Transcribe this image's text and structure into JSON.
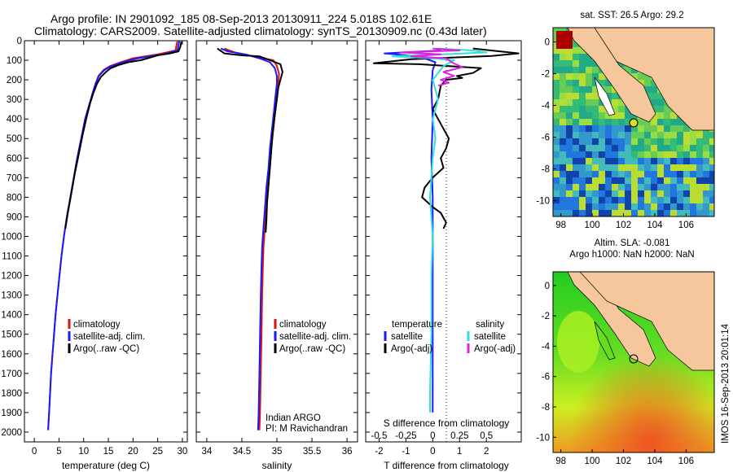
{
  "header": {
    "line1": "Argo profile: IN 2901092_185 08-Sep-2013 20130911_224 5.018S 102.61E",
    "line2": "Climatology: CARS2009. Satellite-adjusted climatology: synTS_20130909.nc (0.43d later)"
  },
  "colors": {
    "climatology": "#dd1111",
    "satellite": "#1a1aff",
    "argo": "#000000",
    "satellite_salinity": "#33dddd",
    "argo_salinity": "#dd22dd",
    "land": "#f6c79c"
  },
  "chart_data": [
    {
      "type": "line",
      "id": "temperature",
      "xlabel": "temperature (deg C)",
      "ylim": [
        0,
        2050
      ],
      "y_inverted": true,
      "xlim": [
        -2,
        31
      ],
      "xticks": [
        0,
        5,
        10,
        15,
        20,
        25,
        30
      ],
      "yticks": [
        0,
        100,
        200,
        300,
        400,
        500,
        600,
        700,
        800,
        900,
        1000,
        1100,
        1200,
        1300,
        1400,
        1500,
        1600,
        1700,
        1800,
        1900,
        2000
      ],
      "legend": [
        "climatology",
        "satellite-adj. clim.",
        "Argo(..raw -QC)"
      ],
      "series": [
        {
          "name": "climatology",
          "color": "#dd1111",
          "points": [
            [
              29.0,
              0
            ],
            [
              28.6,
              50
            ],
            [
              25.0,
              70
            ],
            [
              20.0,
              90
            ],
            [
              17.5,
              110
            ],
            [
              15.3,
              130
            ],
            [
              14.0,
              150
            ],
            [
              13.0,
              180
            ],
            [
              12.4,
              220
            ],
            [
              11.8,
              270
            ],
            [
              11.1,
              330
            ],
            [
              10.3,
              400
            ],
            [
              9.5,
              500
            ],
            [
              8.7,
              600
            ],
            [
              8.0,
              700
            ],
            [
              7.3,
              800
            ],
            [
              6.6,
              900
            ],
            [
              6.0,
              1000
            ],
            [
              5.5,
              1100
            ],
            [
              5.1,
              1200
            ],
            [
              4.7,
              1300
            ],
            [
              4.3,
              1400
            ],
            [
              4.0,
              1500
            ],
            [
              3.7,
              1600
            ],
            [
              3.4,
              1700
            ],
            [
              3.2,
              1800
            ],
            [
              3.0,
              1900
            ],
            [
              2.8,
              1990
            ]
          ]
        },
        {
          "name": "satellite-adj. clim.",
          "color": "#1a1aff",
          "points": [
            [
              29.4,
              0
            ],
            [
              29.0,
              50
            ],
            [
              26.0,
              70
            ],
            [
              21.0,
              90
            ],
            [
              18.0,
              110
            ],
            [
              15.6,
              130
            ],
            [
              14.2,
              150
            ],
            [
              13.1,
              180
            ],
            [
              12.4,
              220
            ],
            [
              11.8,
              270
            ],
            [
              11.1,
              330
            ],
            [
              10.3,
              400
            ],
            [
              9.5,
              500
            ],
            [
              8.7,
              600
            ],
            [
              8.0,
              700
            ],
            [
              7.3,
              800
            ],
            [
              6.6,
              900
            ],
            [
              6.0,
              1000
            ],
            [
              5.5,
              1100
            ],
            [
              5.1,
              1200
            ],
            [
              4.7,
              1300
            ],
            [
              4.3,
              1400
            ],
            [
              4.0,
              1500
            ],
            [
              3.7,
              1600
            ],
            [
              3.4,
              1700
            ],
            [
              3.2,
              1800
            ],
            [
              3.0,
              1900
            ],
            [
              2.8,
              1990
            ]
          ]
        },
        {
          "name": "Argo(..raw -QC)",
          "color": "#000000",
          "points": [
            [
              29.8,
              5
            ],
            [
              29.6,
              30
            ],
            [
              29.2,
              55
            ],
            [
              27.5,
              65
            ],
            [
              25.0,
              75
            ],
            [
              23.0,
              90
            ],
            [
              21.5,
              100
            ],
            [
              19.0,
              110
            ],
            [
              17.0,
              125
            ],
            [
              15.5,
              140
            ],
            [
              14.5,
              160
            ],
            [
              13.5,
              185
            ],
            [
              12.7,
              220
            ],
            [
              12.0,
              265
            ],
            [
              11.3,
              320
            ],
            [
              10.6,
              390
            ],
            [
              9.8,
              480
            ],
            [
              9.0,
              580
            ],
            [
              8.2,
              680
            ],
            [
              7.5,
              780
            ],
            [
              6.8,
              880
            ],
            [
              6.3,
              960
            ]
          ]
        }
      ]
    },
    {
      "type": "line",
      "id": "salinity",
      "xlabel": "salinity",
      "ylim": [
        0,
        2050
      ],
      "y_inverted": true,
      "xlim": [
        33.85,
        36.15
      ],
      "xticks": [
        34,
        34.5,
        35,
        35.5,
        36
      ],
      "legend": [
        "climatology",
        "satellite-adj. clim.",
        "Argo(..raw -QC)"
      ],
      "annotation": [
        "Indian ARGO",
        "PI: M Ravichandran"
      ],
      "series": [
        {
          "name": "climatology",
          "color": "#dd1111",
          "points": [
            [
              34.25,
              40
            ],
            [
              34.4,
              60
            ],
            [
              34.6,
              75
            ],
            [
              34.8,
              90
            ],
            [
              34.95,
              100
            ],
            [
              35.0,
              130
            ],
            [
              35.03,
              170
            ],
            [
              35.02,
              220
            ],
            [
              35.0,
              280
            ],
            [
              34.98,
              350
            ],
            [
              34.95,
              450
            ],
            [
              34.92,
              550
            ],
            [
              34.9,
              650
            ],
            [
              34.87,
              750
            ],
            [
              34.85,
              850
            ],
            [
              34.83,
              950
            ],
            [
              34.81,
              1050
            ],
            [
              34.8,
              1150
            ],
            [
              34.79,
              1300
            ],
            [
              34.78,
              1500
            ],
            [
              34.77,
              1700
            ],
            [
              34.76,
              1900
            ],
            [
              34.75,
              1990
            ]
          ]
        },
        {
          "name": "satellite-adj. clim.",
          "color": "#1a1aff",
          "points": [
            [
              34.2,
              40
            ],
            [
              34.3,
              55
            ],
            [
              34.55,
              70
            ],
            [
              34.75,
              90
            ],
            [
              34.9,
              110
            ],
            [
              34.97,
              140
            ],
            [
              35.0,
              180
            ],
            [
              35.0,
              220
            ],
            [
              34.98,
              280
            ],
            [
              34.96,
              350
            ],
            [
              34.93,
              450
            ],
            [
              34.9,
              550
            ],
            [
              34.88,
              650
            ],
            [
              34.85,
              750
            ],
            [
              34.83,
              850
            ],
            [
              34.81,
              950
            ],
            [
              34.79,
              1050
            ],
            [
              34.78,
              1150
            ],
            [
              34.77,
              1300
            ],
            [
              34.76,
              1500
            ],
            [
              34.75,
              1700
            ],
            [
              34.74,
              1900
            ],
            [
              34.73,
              1990
            ]
          ]
        },
        {
          "name": "Argo(..raw -QC)",
          "color": "#000000",
          "points": [
            [
              34.15,
              40
            ],
            [
              34.25,
              65
            ],
            [
              34.5,
              75
            ],
            [
              34.75,
              80
            ],
            [
              34.9,
              100
            ],
            [
              35.05,
              120
            ],
            [
              35.08,
              160
            ],
            [
              35.05,
              200
            ],
            [
              35.02,
              240
            ],
            [
              35.0,
              300
            ],
            [
              34.97,
              380
            ],
            [
              34.94,
              470
            ],
            [
              34.92,
              560
            ],
            [
              34.9,
              650
            ],
            [
              34.88,
              740
            ],
            [
              34.86,
              830
            ],
            [
              34.85,
              920
            ],
            [
              34.84,
              980
            ]
          ]
        }
      ]
    },
    {
      "type": "line",
      "id": "difference",
      "xlabel": "T difference from climatology",
      "x2label": "S difference from climatology",
      "ylim": [
        0,
        2050
      ],
      "y_inverted": true,
      "xlim": [
        -2.5,
        3.3
      ],
      "xticks": [
        -2,
        -1,
        0,
        1,
        2
      ],
      "x2ticks_labels": [
        "-0.5",
        "-0.25",
        "0",
        "0.25",
        "0.5"
      ],
      "x2ticks_pos": [
        -2,
        -1,
        0,
        1,
        2
      ],
      "legend_titles": [
        "temperature",
        "salinity"
      ],
      "legend": [
        "satellite",
        "Argo(-adj)",
        "satellite",
        "Argo(-adj)"
      ],
      "series": [
        {
          "name": "satellite",
          "color": "#1a1aff",
          "points": [
            [
              0.3,
              50
            ],
            [
              -1.8,
              65
            ],
            [
              -0.5,
              80
            ],
            [
              0.1,
              110
            ],
            [
              0.0,
              150
            ],
            [
              -0.05,
              250
            ],
            [
              0.0,
              400
            ],
            [
              -0.05,
              600
            ],
            [
              0.0,
              800
            ],
            [
              0.0,
              1000
            ],
            [
              0.0,
              1200
            ],
            [
              0.0,
              1500
            ],
            [
              0.0,
              1800
            ],
            [
              0.0,
              1900
            ]
          ]
        },
        {
          "name": "Argo(-adj)",
          "color": "#000000",
          "points": [
            [
              1.5,
              40
            ],
            [
              3.2,
              65
            ],
            [
              2.2,
              78
            ],
            [
              -0.8,
              95
            ],
            [
              -2.2,
              115
            ],
            [
              -0.5,
              120
            ],
            [
              1.8,
              140
            ],
            [
              1.5,
              165
            ],
            [
              0.9,
              180
            ],
            [
              1.1,
              190
            ],
            [
              0.5,
              200
            ],
            [
              0.3,
              230
            ],
            [
              0.2,
              300
            ],
            [
              0.0,
              350
            ],
            [
              0.2,
              400
            ],
            [
              0.4,
              450
            ],
            [
              0.6,
              500
            ],
            [
              0.5,
              550
            ],
            [
              0.3,
              600
            ],
            [
              0.4,
              650
            ],
            [
              0.0,
              700
            ],
            [
              -0.3,
              750
            ],
            [
              -0.4,
              800
            ],
            [
              0.0,
              850
            ],
            [
              0.3,
              880
            ],
            [
              0.5,
              930
            ],
            [
              0.4,
              960
            ]
          ]
        },
        {
          "name": "satellite",
          "color": "#33dddd",
          "points": [
            [
              0.2,
              40
            ],
            [
              1.5,
              50
            ],
            [
              2.0,
              60
            ],
            [
              0.4,
              70
            ],
            [
              -1.5,
              80
            ],
            [
              0.0,
              90
            ],
            [
              0.8,
              100
            ],
            [
              0.4,
              130
            ],
            [
              0.0,
              200
            ],
            [
              0.2,
              300
            ],
            [
              0.0,
              400
            ],
            [
              0.1,
              500
            ],
            [
              0.0,
              600
            ],
            [
              -0.1,
              800
            ],
            [
              0.0,
              1000
            ],
            [
              -0.05,
              1200
            ],
            [
              -0.05,
              1500
            ],
            [
              -0.1,
              1800
            ],
            [
              -0.1,
              1900
            ]
          ]
        },
        {
          "name": "Argo(-adj)",
          "color": "#dd22dd",
          "points": [
            [
              0.0,
              40
            ],
            [
              1.0,
              50
            ],
            [
              -1.2,
              60
            ],
            [
              0.3,
              70
            ],
            [
              -0.8,
              80
            ],
            [
              0.5,
              90
            ],
            [
              0.7,
              110
            ],
            [
              1.1,
              135
            ],
            [
              0.4,
              160
            ],
            [
              0.8,
              180
            ],
            [
              0.3,
              200
            ],
            [
              0.6,
              215
            ],
            [
              0.2,
              230
            ]
          ]
        }
      ]
    }
  ],
  "maps": {
    "sst": {
      "title": "sat. SST: 26.5 Argo: 29.2",
      "lon_range": [
        97.5,
        107.8
      ],
      "lat_range": [
        -11,
        0.9
      ],
      "xticks": [
        98,
        100,
        102,
        104,
        106
      ],
      "yticks": [
        0,
        -2,
        -4,
        -6,
        -8,
        -10
      ],
      "marker": {
        "lon": 102.61,
        "lat": -5.018
      }
    },
    "sla": {
      "title1": "Altim. SLA: -0.081",
      "title2": "Argo h1000: NaN h2000: NaN",
      "lon_range": [
        97.5,
        107.8
      ],
      "lat_range": [
        -11,
        0.9
      ],
      "xticks": [
        98,
        100,
        102,
        104,
        106
      ],
      "yticks": [
        0,
        -2,
        -4,
        -6,
        -8,
        -10
      ],
      "marker": {
        "lon": 102.61,
        "lat": -5.018
      }
    }
  },
  "footer": {
    "side_label": "IMOS 16-Sep-2013 20:01:14"
  }
}
